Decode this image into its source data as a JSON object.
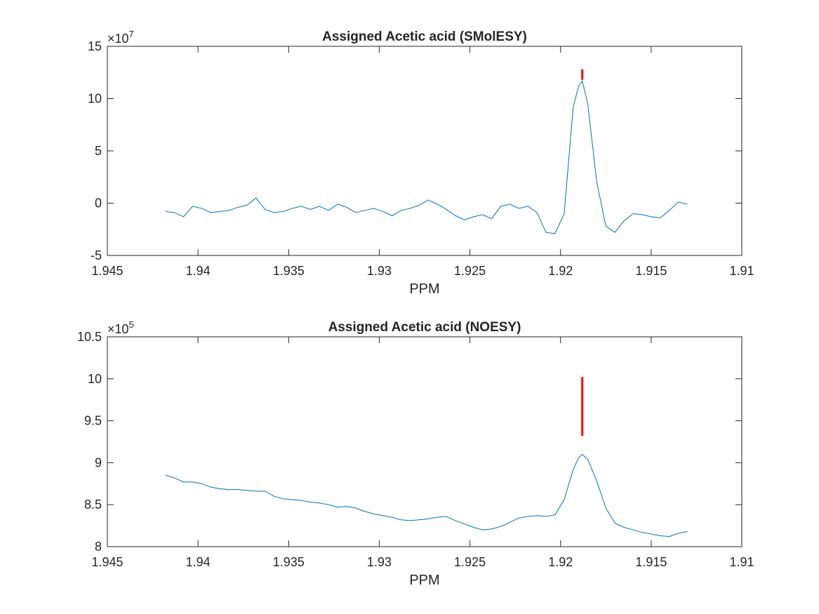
{
  "colors": {
    "trace": "#0072BD",
    "marker": "#FF0000",
    "axis": "#262626"
  },
  "chart_data": [
    {
      "type": "line",
      "title": "Assigned Acetic acid (SMolESY)",
      "xlabel": "PPM",
      "ylabel": "",
      "x_direction": "reversed",
      "xlim": [
        1.91,
        1.945
      ],
      "ylim": [
        -5,
        15
      ],
      "xticks": [
        1.945,
        1.94,
        1.935,
        1.93,
        1.925,
        1.92,
        1.915,
        1.91
      ],
      "xtick_labels": [
        "1.945",
        "1.94",
        "1.935",
        "1.93",
        "1.925",
        "1.92",
        "1.915",
        "1.91"
      ],
      "yticks": [
        -5,
        0,
        5,
        10,
        15
      ],
      "ytick_labels": [
        "-5",
        "0",
        "5",
        "10",
        "15"
      ],
      "y_exponent_base": "×10",
      "y_exponent_power": "7",
      "grid": false,
      "box": true,
      "series": [
        {
          "x": [
            1.9418,
            1.9413,
            1.9408,
            1.9403,
            1.9398,
            1.9393,
            1.9388,
            1.9383,
            1.9378,
            1.9373,
            1.9368,
            1.9363,
            1.9358,
            1.9353,
            1.9348,
            1.9343,
            1.9338,
            1.9333,
            1.9328,
            1.9323,
            1.9318,
            1.9313,
            1.9308,
            1.9303,
            1.9298,
            1.9293,
            1.9288,
            1.9283,
            1.9278,
            1.9273,
            1.9268,
            1.9263,
            1.9258,
            1.9253,
            1.9248,
            1.9243,
            1.9238,
            1.9233,
            1.9228,
            1.9223,
            1.9218,
            1.9213,
            1.9208,
            1.9203,
            1.9198,
            1.9193,
            1.919,
            1.9188,
            1.9185,
            1.918,
            1.9175,
            1.917,
            1.9165,
            1.916,
            1.9155,
            1.915,
            1.9145,
            1.914,
            1.9135,
            1.913
          ],
          "y": [
            -0.8,
            -0.9,
            -1.3,
            -0.3,
            -0.5,
            -0.9,
            -0.8,
            -0.7,
            -0.4,
            -0.2,
            0.5,
            -0.6,
            -0.9,
            -0.8,
            -0.5,
            -0.3,
            -0.6,
            -0.3,
            -0.7,
            -0.1,
            -0.4,
            -0.9,
            -0.7,
            -0.5,
            -0.8,
            -1.2,
            -0.7,
            -0.5,
            -0.2,
            0.3,
            -0.1,
            -0.6,
            -1.2,
            -1.6,
            -1.3,
            -1.1,
            -1.5,
            -0.3,
            -0.1,
            -0.5,
            -0.3,
            -0.9,
            -2.8,
            -2.9,
            -1.0,
            9.2,
            11.2,
            11.7,
            9.5,
            2.0,
            -2.2,
            -2.8,
            -1.7,
            -1.0,
            -1.1,
            -1.3,
            -1.4,
            -0.7,
            0.1,
            -0.1
          ]
        }
      ],
      "markers": [
        {
          "x": 1.9188,
          "y_from": 11.8,
          "y_to": 12.8
        }
      ]
    },
    {
      "type": "line",
      "title": "Assigned Acetic acid (NOESY)",
      "xlabel": "PPM",
      "ylabel": "",
      "x_direction": "reversed",
      "xlim": [
        1.91,
        1.945
      ],
      "ylim": [
        8,
        10.5
      ],
      "xticks": [
        1.945,
        1.94,
        1.935,
        1.93,
        1.925,
        1.92,
        1.915,
        1.91
      ],
      "xtick_labels": [
        "1.945",
        "1.94",
        "1.935",
        "1.93",
        "1.925",
        "1.92",
        "1.915",
        "1.91"
      ],
      "yticks": [
        8,
        8.5,
        9,
        9.5,
        10,
        10.5
      ],
      "ytick_labels": [
        "8",
        "8.5",
        "9",
        "9.5",
        "10",
        "10.5"
      ],
      "y_exponent_base": "×10",
      "y_exponent_power": "5",
      "grid": false,
      "box": true,
      "series": [
        {
          "x": [
            1.9418,
            1.9413,
            1.9408,
            1.9403,
            1.9398,
            1.9393,
            1.9388,
            1.9383,
            1.9378,
            1.9373,
            1.9368,
            1.9363,
            1.9358,
            1.9353,
            1.9348,
            1.9343,
            1.9338,
            1.9333,
            1.9328,
            1.9323,
            1.9318,
            1.9313,
            1.9308,
            1.9303,
            1.9298,
            1.9293,
            1.9288,
            1.9283,
            1.9278,
            1.9273,
            1.9268,
            1.9263,
            1.9258,
            1.9253,
            1.9248,
            1.9243,
            1.9238,
            1.9233,
            1.9228,
            1.9223,
            1.9218,
            1.9213,
            1.9208,
            1.9203,
            1.9198,
            1.9193,
            1.919,
            1.9188,
            1.9185,
            1.918,
            1.9175,
            1.917,
            1.9165,
            1.916,
            1.9155,
            1.915,
            1.9145,
            1.914,
            1.9135,
            1.913
          ],
          "y": [
            8.85,
            8.82,
            8.77,
            8.77,
            8.75,
            8.71,
            8.69,
            8.68,
            8.68,
            8.67,
            8.66,
            8.66,
            8.6,
            8.57,
            8.56,
            8.55,
            8.53,
            8.52,
            8.5,
            8.47,
            8.48,
            8.46,
            8.42,
            8.39,
            8.37,
            8.35,
            8.32,
            8.31,
            8.32,
            8.33,
            8.35,
            8.36,
            8.31,
            8.27,
            8.23,
            8.2,
            8.21,
            8.24,
            8.29,
            8.34,
            8.36,
            8.37,
            8.36,
            8.38,
            8.56,
            8.92,
            9.06,
            9.1,
            9.04,
            8.78,
            8.46,
            8.28,
            8.23,
            8.2,
            8.17,
            8.15,
            8.13,
            8.12,
            8.16,
            8.18
          ]
        }
      ],
      "markers": [
        {
          "x": 1.9188,
          "y_from": 9.32,
          "y_to": 10.02
        }
      ]
    }
  ]
}
